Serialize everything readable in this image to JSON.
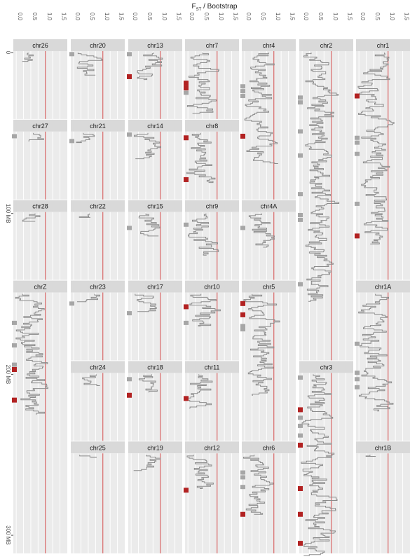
{
  "chart_data": {
    "type": "line",
    "title_main": "F",
    "title_sub": "ST",
    "title_rest": " / Bootstrap",
    "ylabel_unit": "MB",
    "x_ticks": [
      "0.0",
      "0.5",
      "1.0",
      "1.5"
    ],
    "xlim": [
      -0.1,
      1.75
    ],
    "y_ticks": [
      0,
      100,
      200,
      300
    ],
    "reference_x": 1.0,
    "colors": {
      "trace": "#8c8c8c",
      "reference": "#d04a4a",
      "sig_high": "#b22222",
      "sig_low": "#a6a6a6",
      "panel": "#ebebeb",
      "strip": "#d9d9d9"
    },
    "columns": [
      [
        {
          "name": "chr26",
          "start": 0,
          "len": 5.5
        },
        {
          "name": "chr27",
          "start": 50,
          "len": 5
        },
        {
          "name": "chr28",
          "start": 100,
          "len": 5
        },
        {
          "name": "chrZ",
          "start": 150,
          "len": 75
        }
      ],
      [
        {
          "name": "chr20",
          "start": 0,
          "len": 14
        },
        {
          "name": "chr21",
          "start": 50,
          "len": 6
        },
        {
          "name": "chr22",
          "start": 100,
          "len": 2.5
        },
        {
          "name": "chr23",
          "start": 150,
          "len": 5
        },
        {
          "name": "chr24",
          "start": 200,
          "len": 7
        },
        {
          "name": "chr25",
          "start": 250,
          "len": 1.5
        }
      ],
      [
        {
          "name": "chr13",
          "start": 0,
          "len": 17
        },
        {
          "name": "chr14",
          "start": 50,
          "len": 16
        },
        {
          "name": "chr15",
          "start": 100,
          "len": 14
        },
        {
          "name": "chr17",
          "start": 150,
          "len": 11
        },
        {
          "name": "chr18",
          "start": 200,
          "len": 11
        },
        {
          "name": "chr19",
          "start": 250,
          "len": 10
        }
      ],
      [
        {
          "name": "chr7",
          "start": 0,
          "len": 38
        },
        {
          "name": "chr8",
          "start": 50,
          "len": 31
        },
        {
          "name": "chr9",
          "start": 100,
          "len": 26
        },
        {
          "name": "chr10",
          "start": 150,
          "len": 20
        },
        {
          "name": "chr11",
          "start": 200,
          "len": 21
        },
        {
          "name": "chr12",
          "start": 250,
          "len": 21
        }
      ],
      [
        {
          "name": "chr4",
          "start": 0,
          "len": 69
        },
        {
          "name": "chr4A",
          "start": 100,
          "len": 21
        },
        {
          "name": "chr5",
          "start": 150,
          "len": 63
        },
        {
          "name": "chr6",
          "start": 250,
          "len": 37
        }
      ],
      [
        {
          "name": "chr2",
          "start": 0,
          "len": 155
        },
        {
          "name": "chr3",
          "start": 200,
          "len": 113
        }
      ],
      [
        {
          "name": "chr1",
          "start": 0,
          "len": 119
        },
        {
          "name": "chr1A",
          "start": 150,
          "len": 73
        },
        {
          "name": "chr1B",
          "start": 250,
          "len": 1
        }
      ]
    ],
    "markers": [
      {
        "col": 0,
        "y": 52,
        "type": "low"
      },
      {
        "col": 0,
        "y": 168,
        "type": "low"
      },
      {
        "col": 0,
        "y": 182,
        "type": "low"
      },
      {
        "col": 0,
        "y": 194,
        "type": "low"
      },
      {
        "col": 0,
        "y": 197,
        "type": "high"
      },
      {
        "col": 0,
        "y": 216,
        "type": "high"
      },
      {
        "col": 1,
        "y": 1,
        "type": "low"
      },
      {
        "col": 1,
        "y": 55,
        "type": "low"
      },
      {
        "col": 1,
        "y": 156,
        "type": "low"
      },
      {
        "col": 2,
        "y": 1,
        "type": "low"
      },
      {
        "col": 2,
        "y": 15,
        "type": "high"
      },
      {
        "col": 2,
        "y": 51,
        "type": "low"
      },
      {
        "col": 2,
        "y": 109,
        "type": "low"
      },
      {
        "col": 2,
        "y": 162,
        "type": "low"
      },
      {
        "col": 2,
        "y": 203,
        "type": "low"
      },
      {
        "col": 2,
        "y": 213,
        "type": "high"
      },
      {
        "col": 3,
        "y": 19,
        "type": "high"
      },
      {
        "col": 3,
        "y": 22,
        "type": "high"
      },
      {
        "col": 3,
        "y": 25,
        "type": "low"
      },
      {
        "col": 3,
        "y": 53,
        "type": "high"
      },
      {
        "col": 3,
        "y": 79,
        "type": "high"
      },
      {
        "col": 3,
        "y": 107,
        "type": "low"
      },
      {
        "col": 3,
        "y": 158,
        "type": "high"
      },
      {
        "col": 3,
        "y": 168,
        "type": "low"
      },
      {
        "col": 3,
        "y": 215,
        "type": "high"
      },
      {
        "col": 3,
        "y": 272,
        "type": "high"
      },
      {
        "col": 4,
        "y": 21,
        "type": "low"
      },
      {
        "col": 4,
        "y": 24,
        "type": "low"
      },
      {
        "col": 4,
        "y": 27,
        "type": "low"
      },
      {
        "col": 4,
        "y": 52,
        "type": "high"
      },
      {
        "col": 4,
        "y": 109,
        "type": "low"
      },
      {
        "col": 4,
        "y": 156,
        "type": "high"
      },
      {
        "col": 4,
        "y": 163,
        "type": "high"
      },
      {
        "col": 4,
        "y": 170,
        "type": "low"
      },
      {
        "col": 4,
        "y": 172,
        "type": "low"
      },
      {
        "col": 4,
        "y": 261,
        "type": "low"
      },
      {
        "col": 4,
        "y": 264,
        "type": "low"
      },
      {
        "col": 4,
        "y": 270,
        "type": "low"
      },
      {
        "col": 4,
        "y": 287,
        "type": "high"
      },
      {
        "col": 5,
        "y": 28,
        "type": "low"
      },
      {
        "col": 5,
        "y": 31,
        "type": "low"
      },
      {
        "col": 5,
        "y": 49,
        "type": "low"
      },
      {
        "col": 5,
        "y": 64,
        "type": "low"
      },
      {
        "col": 5,
        "y": 88,
        "type": "low"
      },
      {
        "col": 5,
        "y": 101,
        "type": "low"
      },
      {
        "col": 5,
        "y": 104,
        "type": "low"
      },
      {
        "col": 5,
        "y": 144,
        "type": "low"
      },
      {
        "col": 5,
        "y": 202,
        "type": "low"
      },
      {
        "col": 5,
        "y": 222,
        "type": "high"
      },
      {
        "col": 5,
        "y": 227,
        "type": "low"
      },
      {
        "col": 5,
        "y": 232,
        "type": "low"
      },
      {
        "col": 5,
        "y": 238,
        "type": "low"
      },
      {
        "col": 5,
        "y": 244,
        "type": "high"
      },
      {
        "col": 5,
        "y": 271,
        "type": "high"
      },
      {
        "col": 5,
        "y": 287,
        "type": "high"
      },
      {
        "col": 5,
        "y": 305,
        "type": "high"
      },
      {
        "col": 6,
        "y": 27,
        "type": "high"
      },
      {
        "col": 6,
        "y": 53,
        "type": "low"
      },
      {
        "col": 6,
        "y": 56,
        "type": "low"
      },
      {
        "col": 6,
        "y": 63,
        "type": "low"
      },
      {
        "col": 6,
        "y": 94,
        "type": "low"
      },
      {
        "col": 6,
        "y": 114,
        "type": "high"
      },
      {
        "col": 6,
        "y": 181,
        "type": "low"
      },
      {
        "col": 6,
        "y": 199,
        "type": "low"
      },
      {
        "col": 6,
        "y": 203,
        "type": "low"
      },
      {
        "col": 6,
        "y": 208,
        "type": "low"
      }
    ]
  }
}
